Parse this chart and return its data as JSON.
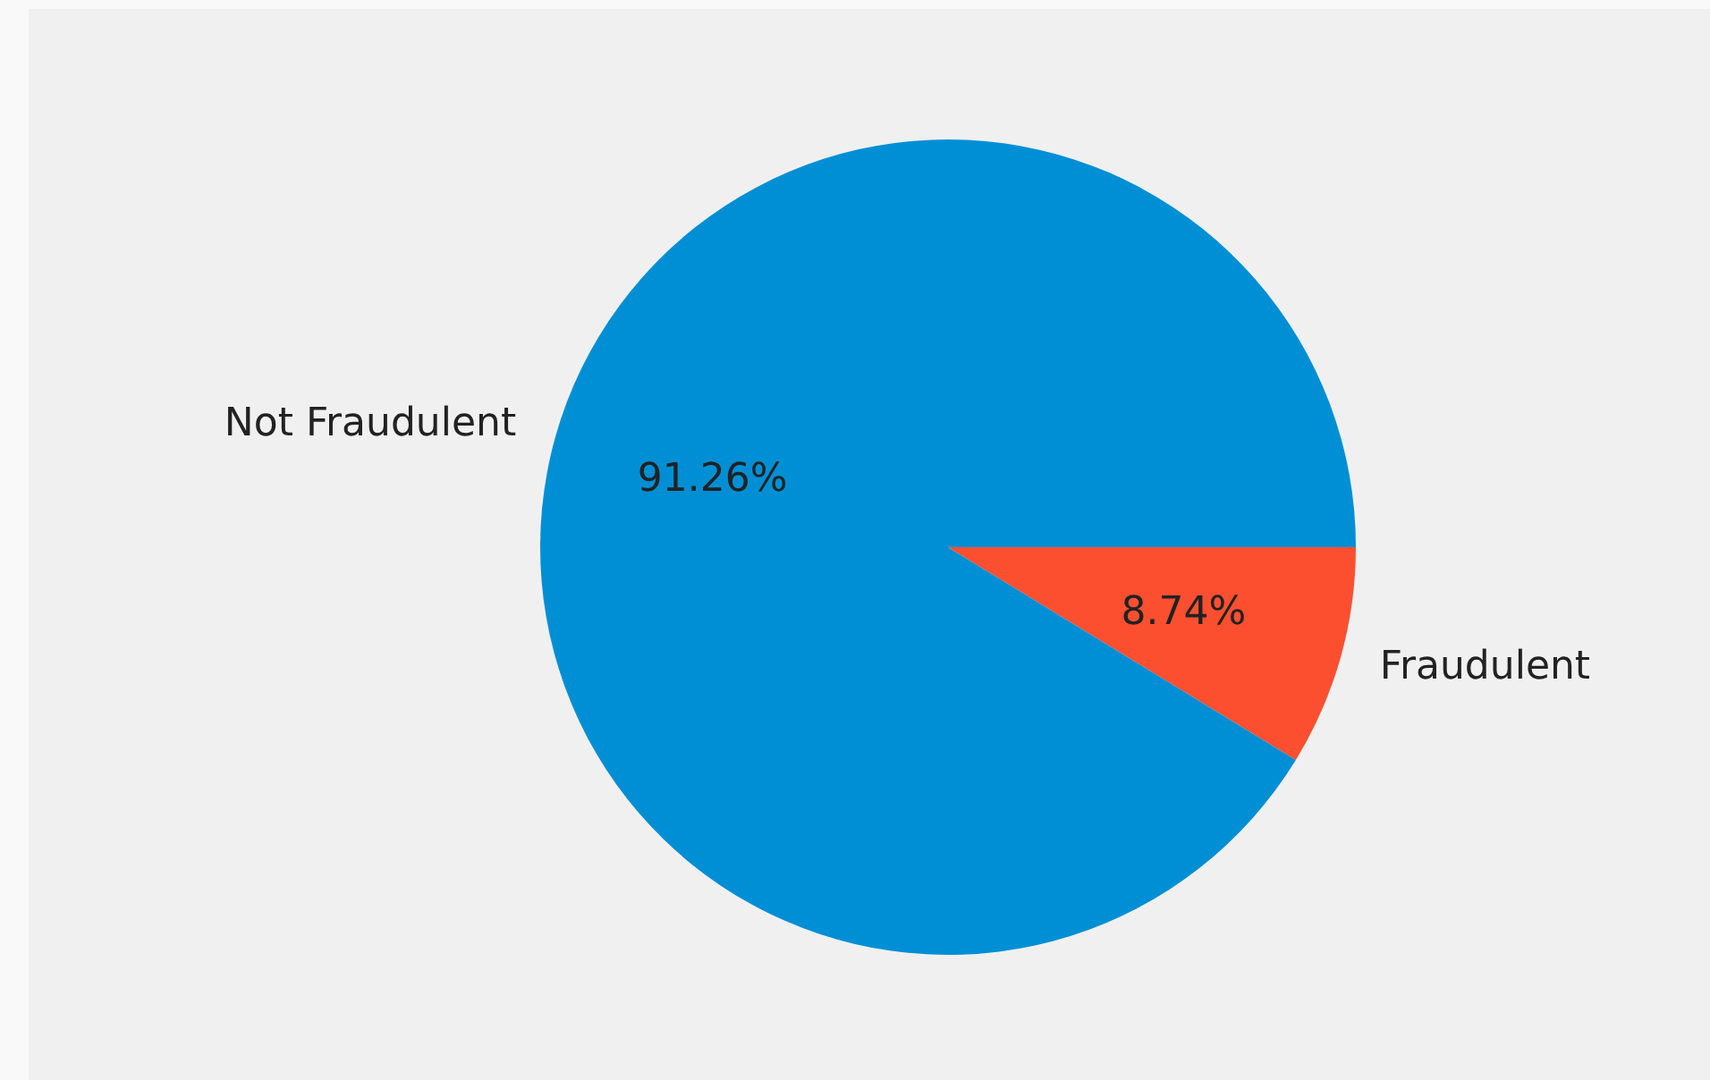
{
  "chart_data": {
    "type": "pie",
    "categories": [
      "Not Fraudulent",
      "Fraudulent"
    ],
    "values": [
      91.26,
      8.74
    ],
    "colors": [
      "#008fd5",
      "#fc4f30"
    ],
    "value_labels": [
      "91.26%",
      "8.74%"
    ],
    "legend": false
  }
}
